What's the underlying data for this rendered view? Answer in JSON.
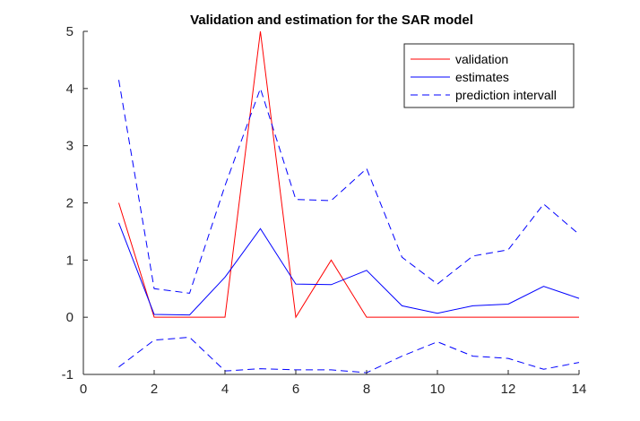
{
  "chart_data": {
    "type": "line",
    "title": "Validation and estimation for the SAR model",
    "xlabel": "",
    "ylabel": "",
    "xlim": [
      0,
      14
    ],
    "ylim": [
      -1,
      5
    ],
    "xticks": [
      "0",
      "2",
      "4",
      "6",
      "8",
      "10",
      "12",
      "14"
    ],
    "yticks": [
      "-1",
      "0",
      "1",
      "2",
      "3",
      "4",
      "5"
    ],
    "grid": false,
    "legend_position": "top-right",
    "x": [
      1,
      2,
      3,
      4,
      5,
      6,
      7,
      8,
      9,
      10,
      11,
      12,
      13,
      14
    ],
    "series": [
      {
        "name": "validation",
        "color": "#ff0000",
        "style": "solid",
        "values": [
          2.0,
          0.0,
          0.0,
          0.0,
          5.0,
          0.0,
          1.0,
          0.0,
          0.0,
          0.0,
          0.0,
          0.0,
          0.0,
          0.0
        ]
      },
      {
        "name": "estimates",
        "color": "#0000ff",
        "style": "solid",
        "values": [
          1.65,
          0.05,
          0.04,
          0.7,
          1.55,
          0.58,
          0.57,
          0.82,
          0.2,
          0.07,
          0.2,
          0.23,
          0.54,
          0.33
        ]
      },
      {
        "name": "prediction intervall",
        "color": "#0000ff",
        "style": "dashed",
        "values": [
          4.15,
          0.5,
          0.42,
          2.3,
          4.0,
          2.06,
          2.04,
          2.6,
          1.05,
          0.58,
          1.07,
          1.18,
          1.98,
          1.45
        ]
      },
      {
        "color": "#0000ff",
        "style": "dashed",
        "values": [
          -0.87,
          -0.4,
          -0.35,
          -0.94,
          -0.9,
          -0.92,
          -0.92,
          -0.97,
          -0.68,
          -0.43,
          -0.68,
          -0.72,
          -0.91,
          -0.79
        ]
      }
    ]
  }
}
